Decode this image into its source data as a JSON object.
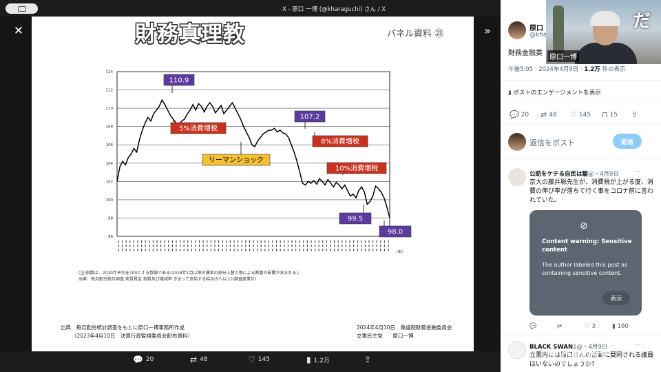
{
  "window": {
    "title": "X - 原口 一博 (@kharaguchi) さん / X"
  },
  "slide": {
    "title": "財務真理教",
    "panel_label": "パネル資料 ㉓",
    "footnote_1": "(注)指数は、2020年平均を100とする数値である(2018年1月以降の標本の部分入替え等による断層の影響が含まれる)。",
    "footnote_2": "出典：毎月勤労統計調査 実質賃金 指数及び増減率 きまって支給する給与(5人以上)(調査産業計)",
    "source_left_1": "出典　毎月勤労統計調査をもとに原口一博事務所作成",
    "source_left_2": "（2023年4月10日　決算行政監視委員会配布資料）",
    "source_right_1": "2024年4月10日　衆議院財務金融委員会",
    "source_right_2": "立憲民主党　　原口一博"
  },
  "chart_data": {
    "type": "line",
    "yticks": [
      "96",
      "98",
      "100",
      "102",
      "104",
      "106",
      "108",
      "110",
      "112",
      "114"
    ],
    "ylim": [
      96,
      114
    ],
    "xlim": [
      0,
      130
    ],
    "x_unit": "(年)",
    "series": [
      {
        "values": [
          102,
          103.6,
          104.2,
          103.8,
          104.6,
          105,
          105.6,
          105.2,
          106.6,
          107.6,
          108.4,
          109,
          108.6,
          109.4,
          109.8,
          110.2,
          110.9,
          110.4,
          109.8,
          109.2,
          108.8,
          108.4,
          108.2,
          108.6,
          108.8,
          109.4,
          109.8,
          110.4,
          109.8,
          110.5,
          110.2,
          109.6,
          110.2,
          110.6,
          110.2,
          109.5,
          109.9,
          110.3,
          109.4,
          109.8,
          110.2,
          110.6,
          110,
          109.4,
          108.8,
          108,
          107.4,
          106.8,
          106,
          105.8,
          106.4,
          106.8,
          107.2,
          107.4,
          107.6,
          107.6,
          107.8,
          107.4,
          107.6,
          107.3,
          107.2,
          106.8,
          106,
          105.2,
          104.2,
          103,
          101.8,
          101.6,
          102,
          101.8,
          102.1,
          101.7,
          102.3,
          102,
          101.6,
          102.2,
          101.8,
          101.4,
          101.9,
          101.6,
          101.2,
          101.6,
          101,
          100.4,
          100.6,
          100.2,
          101,
          101.4,
          100.8,
          99.5,
          99.8,
          100.4,
          101.5,
          101.2,
          100.8,
          100.2,
          99.2,
          98.0
        ]
      }
    ],
    "annotations": [
      "110.9",
      "5%消費増税",
      "107.2",
      "8%消費増税",
      "リーマンショック",
      "10%消費増税",
      "99.5",
      "98.0"
    ]
  },
  "viewer_bar": {
    "replies": "20",
    "reposts": "48",
    "likes": "145",
    "views": "1.2万"
  },
  "post": {
    "author_name": "原口",
    "author_handle": "@kha",
    "text": "財務金融委",
    "time": "午後5:05 · 2024年4月9日 · ",
    "views_count": "1.2万",
    "views_suffix": " 件の表示",
    "engagement_link": "ポストのエンゲージメントを表示",
    "replies": "20",
    "reposts": "48",
    "likes": "145",
    "bookmarks": "15"
  },
  "reply_box": {
    "placeholder": "返信をポスト",
    "button": "返信"
  },
  "reply_1": {
    "name": "公助をケチる自民は駆",
    "meta": "@・4月9日",
    "text": "京大の藤井聡先生が、消費税が上がる度、消費の伸び率が落ちて行く事をコロナ前に言われていた。",
    "cw_title": "Content warning: Sensitive content",
    "cw_desc": "The author labeled this post as containing sensitive content.",
    "cw_show": "表示",
    "replies": "",
    "reposts": "",
    "likes": "3",
    "views": "160"
  },
  "reply_2": {
    "name": "BLACK SWAN",
    "meta": "1@・4月9日",
    "text": "立憲内には原口さんの活動に賛同される議員はいないのでしょうか?"
  },
  "video": {
    "participant": "原口一博",
    "caption": "だ"
  },
  "zoom_mark": "zoom"
}
